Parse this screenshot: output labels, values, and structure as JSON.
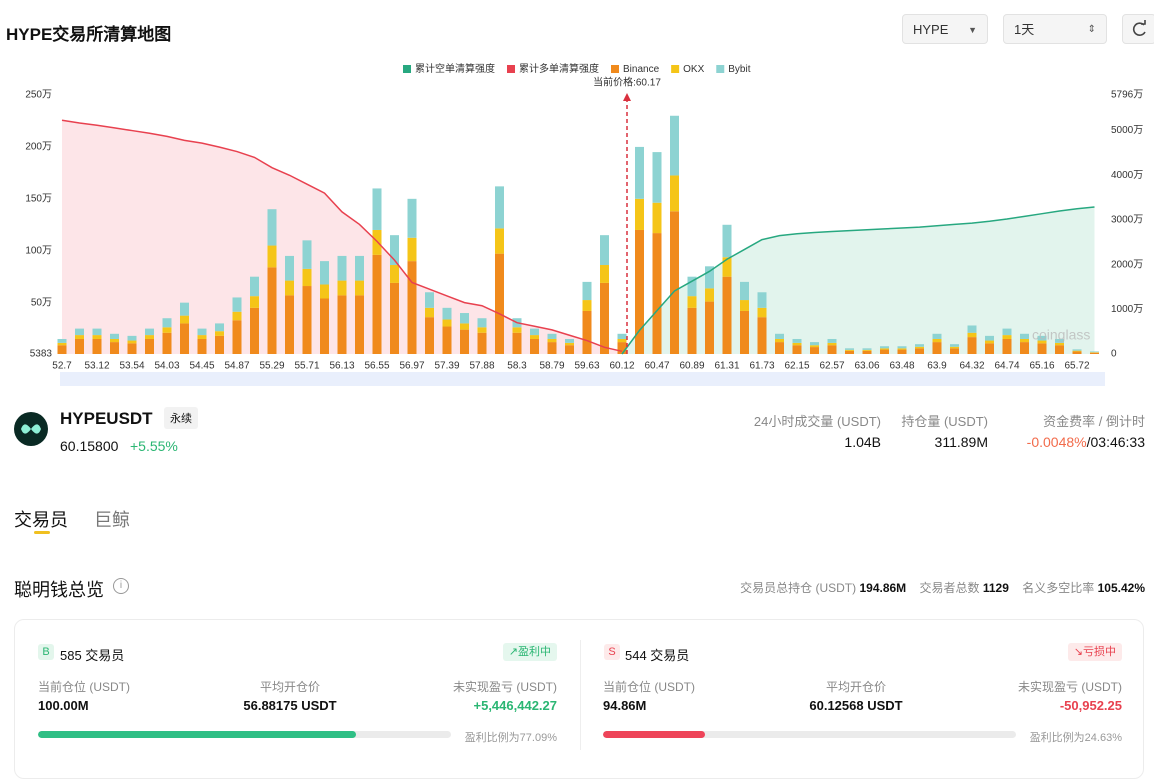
{
  "header": {
    "title": "HYPE交易所清算地图",
    "symbol_select": "HYPE",
    "range_select": "1天"
  },
  "chart_data": {
    "type": "bar",
    "stacked": true,
    "grid": false,
    "legend_position": "top",
    "annotation": "当前价格:60.17",
    "current_price": 60.17,
    "watermark": "coinglass",
    "categories": [
      "52.7",
      null,
      "53.12",
      null,
      "53.54",
      null,
      "54.03",
      null,
      "54.45",
      null,
      "54.87",
      null,
      "55.29",
      null,
      "55.71",
      null,
      "56.13",
      null,
      "56.55",
      null,
      "56.97",
      null,
      "57.39",
      null,
      "57.88",
      null,
      "58.3",
      null,
      "58.79",
      null,
      "59.63",
      null,
      "60.12",
      null,
      "60.47",
      null,
      "60.89",
      null,
      "61.31",
      null,
      "61.73",
      null,
      "62.15",
      null,
      "62.57",
      null,
      "63.06",
      null,
      "63.48",
      null,
      "63.9",
      null,
      "64.32",
      null,
      "64.74",
      null,
      "65.16",
      null,
      "65.72",
      null
    ],
    "ylim": [
      5383,
      2500000
    ],
    "yticks": [
      5383,
      {
        "value": 500000,
        "label": "50万"
      },
      {
        "value": 1000000,
        "label": "100万"
      },
      {
        "value": 1500000,
        "label": "150万"
      },
      {
        "value": 2000000,
        "label": "200万"
      },
      {
        "value": 2500000,
        "label": "250万"
      }
    ],
    "y2lim": [
      0,
      57960000
    ],
    "y2ticks": [
      0,
      {
        "value": 10000000,
        "label": "1000万"
      },
      {
        "value": 20000000,
        "label": "2000万"
      },
      {
        "value": 30000000,
        "label": "3000万"
      },
      {
        "value": 40000000,
        "label": "4000万"
      },
      {
        "value": 50000000,
        "label": "5000万"
      },
      {
        "value": 57960000,
        "label": "5796万"
      }
    ],
    "series": [
      {
        "name": "累计空单清算强度",
        "color": "#27a880",
        "fill": "#e2f4ed",
        "axis": "y2",
        "values": [
          null,
          null,
          null,
          null,
          null,
          null,
          null,
          null,
          null,
          null,
          null,
          null,
          null,
          null,
          null,
          null,
          null,
          null,
          null,
          null,
          null,
          null,
          null,
          null,
          null,
          null,
          null,
          null,
          null,
          null,
          null,
          null,
          0,
          5300000,
          9700000,
          14100000,
          16300000,
          18500000,
          21200000,
          23400000,
          25600000,
          26500000,
          26900000,
          27200000,
          27400000,
          27600000,
          27800000,
          28000000,
          28200000,
          28400000,
          28700000,
          29000000,
          29300000,
          29700000,
          30200000,
          30800000,
          31400000,
          32000000,
          32500000,
          32900000
        ]
      },
      {
        "name": "累计多单清算强度",
        "color": "#e8414f",
        "fill": "#fde5e8",
        "axis": "y2",
        "values": [
          52300000,
          51700000,
          51200000,
          50600000,
          50000000,
          49400000,
          48700000,
          47800000,
          47200000,
          46300000,
          45300000,
          44000000,
          41700000,
          40000000,
          38000000,
          36000000,
          31800000,
          29000000,
          25200000,
          21000000,
          16000000,
          14500000,
          13000000,
          11500000,
          10800000,
          9000000,
          7000000,
          6200000,
          5400000,
          4200000,
          3000000,
          1500000,
          600000,
          null,
          null,
          null,
          null,
          null,
          null,
          null,
          null,
          null,
          null,
          null,
          null,
          null,
          null,
          null,
          null,
          null,
          null,
          null,
          null,
          null,
          null,
          null,
          null,
          null,
          null,
          null
        ]
      },
      {
        "name": "Binance",
        "color": "#f08a1c",
        "values": [
          90000,
          150000,
          150000,
          120000,
          108000,
          150000,
          210000,
          300000,
          150000,
          180000,
          330000,
          450000,
          840000,
          570000,
          660000,
          540000,
          570000,
          570000,
          960000,
          690000,
          900000,
          360000,
          270000,
          240000,
          210000,
          972000,
          210000,
          150000,
          120000,
          90000,
          420000,
          690000,
          120000,
          1200000,
          1170000,
          1380000,
          450000,
          510000,
          750000,
          420000,
          360000,
          120000,
          90000,
          72000,
          90000,
          36000,
          36000,
          48000,
          48000,
          60000,
          120000,
          60000,
          168000,
          108000,
          150000,
          120000,
          108000,
          90000,
          30000,
          18000
        ]
      },
      {
        "name": "OKX",
        "color": "#f5c518",
        "values": [
          22500,
          37500,
          37500,
          30000,
          27000,
          37500,
          52500,
          75000,
          37500,
          45000,
          82500,
          112500,
          210000,
          142500,
          165000,
          135000,
          142500,
          142500,
          240000,
          172500,
          225000,
          90000,
          67500,
          60000,
          52500,
          243000,
          52500,
          37500,
          30000,
          22500,
          105000,
          172500,
          30000,
          300000,
          292500,
          345000,
          112500,
          127500,
          187500,
          105000,
          90000,
          30000,
          22500,
          18000,
          22500,
          9000,
          9000,
          12000,
          12000,
          15000,
          30000,
          15000,
          42000,
          27000,
          37500,
          30000,
          27000,
          22500,
          7500,
          4500
        ]
      },
      {
        "name": "Bybit",
        "color": "#8dd3d2",
        "values": [
          37500,
          62500,
          62500,
          50000,
          45000,
          62500,
          87500,
          125000,
          62500,
          75000,
          137500,
          187500,
          350000,
          237500,
          275000,
          225000,
          237500,
          237500,
          400000,
          287500,
          375000,
          150000,
          112500,
          100000,
          87500,
          405000,
          87500,
          62500,
          50000,
          37500,
          175000,
          287500,
          50000,
          500000,
          487500,
          575000,
          187500,
          212500,
          312500,
          175000,
          150000,
          50000,
          37500,
          30000,
          37500,
          15000,
          15000,
          20000,
          20000,
          25000,
          50000,
          25000,
          70000,
          45000,
          62500,
          50000,
          45000,
          37500,
          12500,
          7500
        ]
      }
    ]
  },
  "ticker": {
    "symbol": "HYPEUSDT",
    "tag": "永续",
    "price": "60.15800",
    "change": "+5.55%",
    "stats": [
      {
        "label": "24小时成交量 (USDT)",
        "value": "1.04B"
      },
      {
        "label": "持仓量 (USDT)",
        "value": "311.89M"
      },
      {
        "label": "资金费率 / 倒计时",
        "value": "-0.0048%",
        "extra": "/03:46:33"
      }
    ]
  },
  "tabs": [
    "交易员",
    "巨鲸"
  ],
  "overview": {
    "title": "聪明钱总览",
    "stats": [
      {
        "label": "交易员总持仓 (USDT)",
        "value": "194.86M"
      },
      {
        "label": "交易者总数",
        "value": "1129"
      },
      {
        "label": "名义多空比率",
        "value": "105.42%"
      }
    ]
  },
  "cards": [
    {
      "badge": "B",
      "title": "585 交易员",
      "status": "盈利中",
      "fields": [
        {
          "label": "当前仓位 (USDT)",
          "value": "100.00M"
        },
        {
          "label": "平均开仓价",
          "value": "56.88175 USDT"
        },
        {
          "label": "未实现盈亏 (USDT)",
          "value": "+5,446,442.27"
        }
      ],
      "ratio": 77.09,
      "ratio_label": "盈利比例为77.09%"
    },
    {
      "badge": "S",
      "title": "544 交易员",
      "status": "亏损中",
      "fields": [
        {
          "label": "当前仓位 (USDT)",
          "value": "94.86M"
        },
        {
          "label": "平均开仓价",
          "value": "60.12568 USDT"
        },
        {
          "label": "未实现盈亏 (USDT)",
          "value": "-50,952.25"
        }
      ],
      "ratio": 24.63,
      "ratio_label": "盈利比例为24.63%"
    }
  ]
}
